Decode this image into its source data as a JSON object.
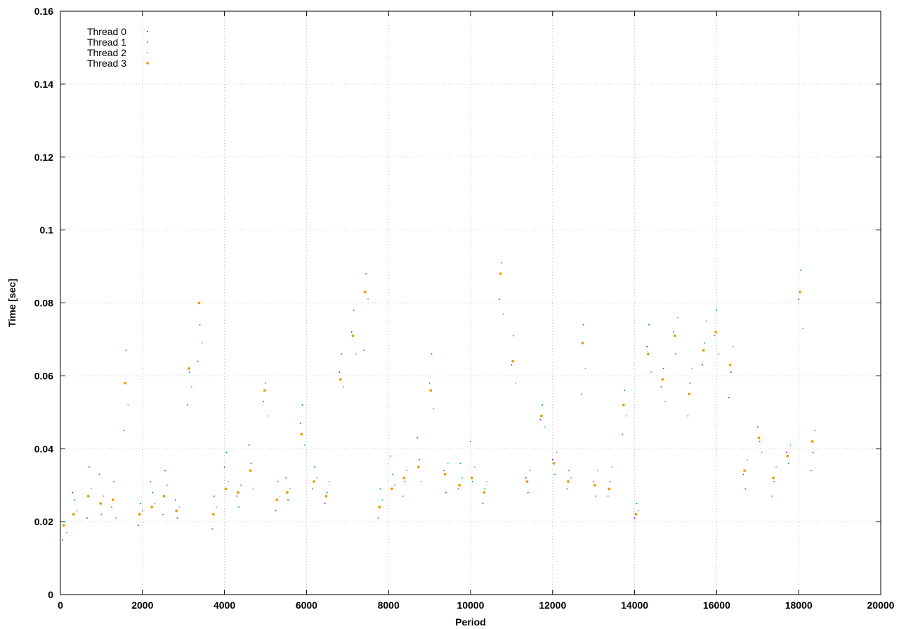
{
  "chart_data": {
    "type": "scatter",
    "title": "",
    "xlabel": "Period",
    "ylabel": "Time [sec]",
    "xlim": [
      0,
      20000
    ],
    "ylim": [
      0,
      0.16
    ],
    "xticks": [
      0,
      2000,
      4000,
      6000,
      8000,
      10000,
      12000,
      14000,
      16000,
      18000,
      20000
    ],
    "yticks": [
      0,
      0.02,
      0.04,
      0.06,
      0.08,
      0.1,
      0.12,
      0.14,
      0.16
    ],
    "xtick_labels": [
      "0",
      "2000",
      "4000",
      "6000",
      "8000",
      "10000",
      "12000",
      "14000",
      "16000",
      "18000",
      "20000"
    ],
    "ytick_labels": [
      "0",
      "0.02",
      "0.04",
      "0.06",
      "0.08",
      "0.1",
      "0.12",
      "0.14",
      "0.16"
    ],
    "grid": true,
    "legend_position": "top-left",
    "series": [
      {
        "name": "Thread 0",
        "color": "#9400d3",
        "x": [
          50,
          300,
          650,
          950,
          1250,
          1550,
          1900,
          2200,
          2500,
          2800,
          3100,
          3350,
          3700,
          4000,
          4300,
          4600,
          4950,
          5250,
          5500,
          5850,
          6150,
          6450,
          6800,
          7100,
          7400,
          7750,
          8050,
          8350,
          8700,
          9000,
          9350,
          9700,
          10000,
          10300,
          10700,
          11000,
          11350,
          11700,
          12000,
          12350,
          12700,
          13000,
          13350,
          13700,
          14000,
          14300,
          14650,
          14950,
          15300,
          15650,
          15950,
          16300,
          16650,
          17000,
          17350,
          17700,
          18000,
          18300
        ],
        "y": [
          0.015,
          0.028,
          0.021,
          0.033,
          0.024,
          0.045,
          0.019,
          0.031,
          0.022,
          0.026,
          0.052,
          0.064,
          0.018,
          0.035,
          0.027,
          0.041,
          0.053,
          0.023,
          0.032,
          0.047,
          0.029,
          0.025,
          0.061,
          0.072,
          0.067,
          0.021,
          0.038,
          0.027,
          0.043,
          0.058,
          0.034,
          0.029,
          0.042,
          0.025,
          0.081,
          0.063,
          0.032,
          0.048,
          0.037,
          0.029,
          0.055,
          0.031,
          0.027,
          0.044,
          0.021,
          0.068,
          0.057,
          0.072,
          0.049,
          0.063,
          0.071,
          0.054,
          0.033,
          0.046,
          0.027,
          0.039,
          0.081,
          0.034
        ]
      },
      {
        "name": "Thread 1",
        "color": "#009e73",
        "x": [
          100,
          350,
          700,
          1000,
          1300,
          1600,
          1950,
          2250,
          2550,
          2850,
          3150,
          3400,
          3750,
          4050,
          4350,
          4650,
          5000,
          5300,
          5550,
          5900,
          6200,
          6500,
          6850,
          7150,
          7450,
          7800,
          8100,
          8400,
          8750,
          9050,
          9400,
          9750,
          10050,
          10350,
          10750,
          11050,
          11400,
          11750,
          12050,
          12400,
          12750,
          13050,
          13400,
          13750,
          14050,
          14350,
          14700,
          15000,
          15350,
          15700,
          16000,
          16350,
          16700,
          17050,
          17400,
          17750,
          18050,
          18350
        ],
        "y": [
          0.02,
          0.026,
          0.035,
          0.022,
          0.031,
          0.067,
          0.025,
          0.028,
          0.034,
          0.021,
          0.061,
          0.074,
          0.027,
          0.039,
          0.024,
          0.036,
          0.058,
          0.031,
          0.026,
          0.052,
          0.035,
          0.028,
          0.066,
          0.078,
          0.088,
          0.029,
          0.033,
          0.031,
          0.037,
          0.066,
          0.028,
          0.036,
          0.031,
          0.029,
          0.091,
          0.071,
          0.028,
          0.052,
          0.033,
          0.034,
          0.074,
          0.027,
          0.031,
          0.056,
          0.025,
          0.074,
          0.062,
          0.066,
          0.058,
          0.069,
          0.078,
          0.061,
          0.029,
          0.042,
          0.031,
          0.036,
          0.089,
          0.039
        ]
      },
      {
        "name": "Thread 2",
        "color": "#56b4e9",
        "x": [
          150,
          400,
          750,
          1050,
          1350,
          1650,
          2000,
          2300,
          2600,
          2900,
          3200,
          3450,
          3800,
          4100,
          4400,
          4700,
          5050,
          5350,
          5600,
          5950,
          6250,
          6550,
          6900,
          7200,
          7500,
          7850,
          8150,
          8450,
          8800,
          9100,
          9450,
          9800,
          10100,
          10400,
          10800,
          11100,
          11450,
          11800,
          12100,
          12450,
          12800,
          13100,
          13450,
          13800,
          14100,
          14400,
          14750,
          15050,
          15400,
          15750,
          16050,
          16400,
          16750,
          17100,
          17450,
          17800,
          18100,
          18400
        ],
        "y": [
          0.017,
          0.023,
          0.029,
          0.027,
          0.021,
          0.052,
          0.023,
          0.025,
          0.03,
          0.024,
          0.057,
          0.069,
          0.024,
          0.031,
          0.03,
          0.029,
          0.049,
          0.027,
          0.029,
          0.041,
          0.032,
          0.031,
          0.057,
          0.066,
          0.081,
          0.026,
          0.03,
          0.034,
          0.031,
          0.051,
          0.036,
          0.032,
          0.035,
          0.031,
          0.077,
          0.058,
          0.034,
          0.046,
          0.039,
          0.032,
          0.062,
          0.034,
          0.035,
          0.049,
          0.023,
          0.061,
          0.053,
          0.076,
          0.062,
          0.075,
          0.066,
          0.068,
          0.037,
          0.039,
          0.035,
          0.041,
          0.073,
          0.045
        ]
      },
      {
        "name": "Thread 3",
        "color": "#e69f00",
        "x": [
          80,
          320,
          680,
          980,
          1280,
          1580,
          1930,
          2230,
          2530,
          2830,
          3130,
          3380,
          3730,
          4030,
          4330,
          4630,
          4980,
          5280,
          5530,
          5880,
          6180,
          6480,
          6830,
          7130,
          7430,
          7780,
          8080,
          8380,
          8730,
          9030,
          9380,
          9730,
          10030,
          10330,
          10730,
          11030,
          11380,
          11730,
          12030,
          12380,
          12730,
          13030,
          13380,
          13730,
          14030,
          14330,
          14680,
          14980,
          15330,
          15680,
          15980,
          16330,
          16680,
          17030,
          17380,
          17730,
          18030,
          18330
        ],
        "y": [
          0.019,
          0.022,
          0.027,
          0.025,
          0.026,
          0.058,
          0.022,
          0.024,
          0.027,
          0.023,
          0.062,
          0.08,
          0.022,
          0.029,
          0.028,
          0.034,
          0.056,
          0.026,
          0.028,
          0.044,
          0.031,
          0.027,
          0.059,
          0.071,
          0.083,
          0.024,
          0.029,
          0.032,
          0.035,
          0.056,
          0.033,
          0.03,
          0.032,
          0.028,
          0.088,
          0.064,
          0.031,
          0.049,
          0.036,
          0.031,
          0.069,
          0.03,
          0.029,
          0.052,
          0.022,
          0.066,
          0.059,
          0.071,
          0.055,
          0.067,
          0.072,
          0.063,
          0.034,
          0.043,
          0.032,
          0.038,
          0.083,
          0.042
        ]
      }
    ]
  }
}
